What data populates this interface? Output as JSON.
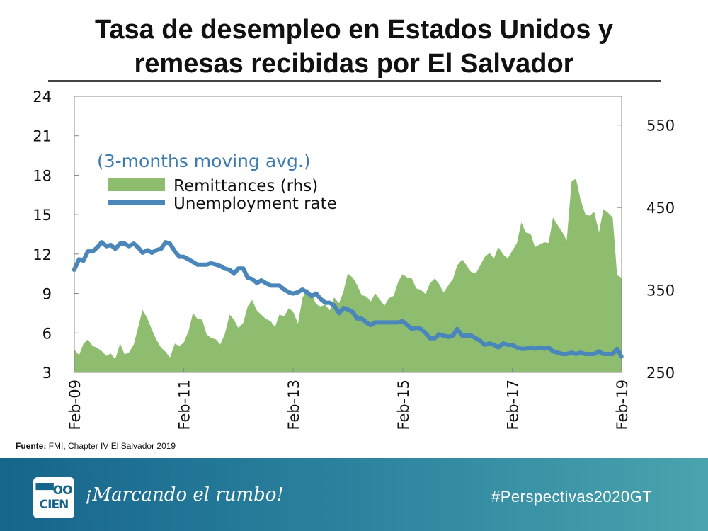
{
  "title": {
    "line1": "Tasa de desempleo en Estados Unidos y",
    "line2": "remesas recibidas por El Salvador"
  },
  "chart_data": {
    "type": "area+line",
    "annotation": "(3-months moving avg.)",
    "x_ticks": [
      "Feb-09",
      "Feb-11",
      "Feb-13",
      "Feb-15",
      "Feb-17",
      "Feb-19"
    ],
    "x_range": [
      2009.0833,
      2019.0833
    ],
    "y_left": {
      "ticks": [
        3,
        6,
        9,
        12,
        15,
        18,
        21,
        24
      ],
      "lim": [
        3,
        24
      ]
    },
    "y_right": {
      "ticks": [
        250,
        350,
        450,
        550
      ],
      "lim": [
        250,
        585
      ]
    },
    "series": [
      {
        "name": "Remittances (rhs)",
        "type": "area",
        "axis": "right",
        "color": "#8ebd70",
        "x": [
          2009.08,
          2009.17,
          2009.25,
          2009.33,
          2009.42,
          2009.5,
          2009.58,
          2009.67,
          2009.75,
          2009.83,
          2009.92,
          2010.0,
          2010.08,
          2010.17,
          2010.25,
          2010.33,
          2010.42,
          2010.5,
          2010.58,
          2010.67,
          2010.75,
          2010.83,
          2010.92,
          2011.0,
          2011.08,
          2011.17,
          2011.25,
          2011.33,
          2011.42,
          2011.5,
          2011.58,
          2011.67,
          2011.75,
          2011.83,
          2011.92,
          2012.0,
          2012.08,
          2012.17,
          2012.25,
          2012.33,
          2012.42,
          2012.5,
          2012.58,
          2012.67,
          2012.75,
          2012.83,
          2012.92,
          2013.0,
          2013.08,
          2013.17,
          2013.25,
          2013.33,
          2013.42,
          2013.5,
          2013.58,
          2013.67,
          2013.75,
          2013.83,
          2013.92,
          2014.0,
          2014.08,
          2014.17,
          2014.25,
          2014.33,
          2014.42,
          2014.5,
          2014.58,
          2014.67,
          2014.75,
          2014.83,
          2014.92,
          2015.0,
          2015.08,
          2015.17,
          2015.25,
          2015.33,
          2015.42,
          2015.5,
          2015.58,
          2015.67,
          2015.75,
          2015.83,
          2015.92,
          2016.0,
          2016.08,
          2016.17,
          2016.25,
          2016.33,
          2016.42,
          2016.5,
          2016.58,
          2016.67,
          2016.75,
          2016.83,
          2016.92,
          2017.0,
          2017.08,
          2017.17,
          2017.25,
          2017.33,
          2017.42,
          2017.5,
          2017.58,
          2017.67,
          2017.75,
          2017.83,
          2017.92,
          2018.0,
          2018.08,
          2018.17,
          2018.25,
          2018.33,
          2018.42,
          2018.5,
          2018.58,
          2018.67,
          2018.75,
          2018.83,
          2018.92,
          2019.0,
          2019.08
        ],
        "y": [
          278,
          271,
          285,
          290,
          282,
          280,
          276,
          270,
          273,
          266,
          285,
          272,
          274,
          284,
          305,
          326,
          315,
          302,
          290,
          280,
          275,
          268,
          285,
          282,
          286,
          300,
          322,
          315,
          314,
          296,
          292,
          290,
          284,
          296,
          320,
          314,
          304,
          310,
          330,
          338,
          325,
          320,
          315,
          312,
          305,
          320,
          318,
          328,
          324,
          309,
          340,
          352,
          345,
          333,
          330,
          332,
          325,
          341,
          334,
          348,
          370,
          365,
          356,
          344,
          342,
          336,
          346,
          338,
          331,
          340,
          343,
          360,
          369,
          365,
          364,
          352,
          350,
          345,
          358,
          364,
          357,
          347,
          356,
          363,
          380,
          387,
          380,
          372,
          370,
          380,
          390,
          395,
          388,
          402,
          393,
          388,
          397,
          407,
          432,
          420,
          418,
          402,
          405,
          408,
          407,
          438,
          428,
          420,
          410,
          482,
          485,
          460,
          442,
          440,
          445,
          420,
          448,
          444,
          438,
          368,
          365
        ]
      },
      {
        "name": "Unemployment rate",
        "type": "line",
        "axis": "left",
        "color": "#4a86ba",
        "x": [
          2009.08,
          2009.17,
          2009.25,
          2009.33,
          2009.42,
          2009.5,
          2009.58,
          2009.67,
          2009.75,
          2009.83,
          2009.92,
          2010.0,
          2010.08,
          2010.17,
          2010.25,
          2010.33,
          2010.42,
          2010.5,
          2010.58,
          2010.67,
          2010.75,
          2010.83,
          2010.92,
          2011.0,
          2011.08,
          2011.17,
          2011.25,
          2011.33,
          2011.42,
          2011.5,
          2011.58,
          2011.67,
          2011.75,
          2011.83,
          2011.92,
          2012.0,
          2012.08,
          2012.17,
          2012.25,
          2012.33,
          2012.42,
          2012.5,
          2012.58,
          2012.67,
          2012.75,
          2012.83,
          2012.92,
          2013.0,
          2013.08,
          2013.17,
          2013.25,
          2013.33,
          2013.42,
          2013.5,
          2013.58,
          2013.67,
          2013.75,
          2013.83,
          2013.92,
          2014.0,
          2014.08,
          2014.17,
          2014.25,
          2014.33,
          2014.42,
          2014.5,
          2014.58,
          2014.67,
          2014.75,
          2014.83,
          2014.92,
          2015.0,
          2015.08,
          2015.17,
          2015.25,
          2015.33,
          2015.42,
          2015.5,
          2015.58,
          2015.67,
          2015.75,
          2015.83,
          2015.92,
          2016.0,
          2016.08,
          2016.17,
          2016.25,
          2016.33,
          2016.42,
          2016.5,
          2016.58,
          2016.67,
          2016.75,
          2016.83,
          2016.92,
          2017.0,
          2017.08,
          2017.17,
          2017.25,
          2017.33,
          2017.42,
          2017.5,
          2017.58,
          2017.67,
          2017.75,
          2017.83,
          2017.92,
          2018.0,
          2018.08,
          2018.17,
          2018.25,
          2018.33,
          2018.42,
          2018.5,
          2018.58,
          2018.67,
          2018.75,
          2018.83,
          2018.92,
          2019.0,
          2019.08
        ],
        "y": [
          10.8,
          11.6,
          11.5,
          12.2,
          12.2,
          12.5,
          12.9,
          12.6,
          12.7,
          12.4,
          12.8,
          12.8,
          12.6,
          12.8,
          12.5,
          12.1,
          12.3,
          12.1,
          12.3,
          12.4,
          12.9,
          12.8,
          12.2,
          11.8,
          11.8,
          11.6,
          11.4,
          11.2,
          11.2,
          11.2,
          11.3,
          11.2,
          11.1,
          10.9,
          10.8,
          10.5,
          10.9,
          10.9,
          10.2,
          10.1,
          9.8,
          10.0,
          9.8,
          9.6,
          9.6,
          9.6,
          9.3,
          9.1,
          9.0,
          9.1,
          9.3,
          9.1,
          8.8,
          9.0,
          8.6,
          8.3,
          8.3,
          8.1,
          7.5,
          7.9,
          7.8,
          7.6,
          7.1,
          7.1,
          6.8,
          6.6,
          6.8,
          6.8,
          6.8,
          6.8,
          6.8,
          6.8,
          6.9,
          6.6,
          6.3,
          6.4,
          6.3,
          6.0,
          5.6,
          5.6,
          5.9,
          5.8,
          5.7,
          5.8,
          6.3,
          5.8,
          5.8,
          5.8,
          5.6,
          5.4,
          5.1,
          5.2,
          5.1,
          4.9,
          5.2,
          5.1,
          5.1,
          4.9,
          4.8,
          4.8,
          4.9,
          4.8,
          4.9,
          4.8,
          4.9,
          4.6,
          4.5,
          4.4,
          4.4,
          4.5,
          4.4,
          4.5,
          4.4,
          4.4,
          4.4,
          4.6,
          4.4,
          4.4,
          4.4,
          4.8,
          4.2
        ]
      }
    ]
  },
  "source": {
    "label": "Fuente:",
    "text": "FMI, Chapter IV El Salvador 2019"
  },
  "footer": {
    "logo_top": "▀▀OO",
    "logo_bottom": "CIEN",
    "slogan": "¡Marcando el rumbo!",
    "hashtag": "#Perspectivas2020GT"
  },
  "colors": {
    "remittances_fill": "#8ebd70",
    "unemployment_line": "#4a86ba",
    "annotation_text": "#3d7ab0",
    "footer_start": "#16658b",
    "footer_end": "#4aa3ad"
  }
}
